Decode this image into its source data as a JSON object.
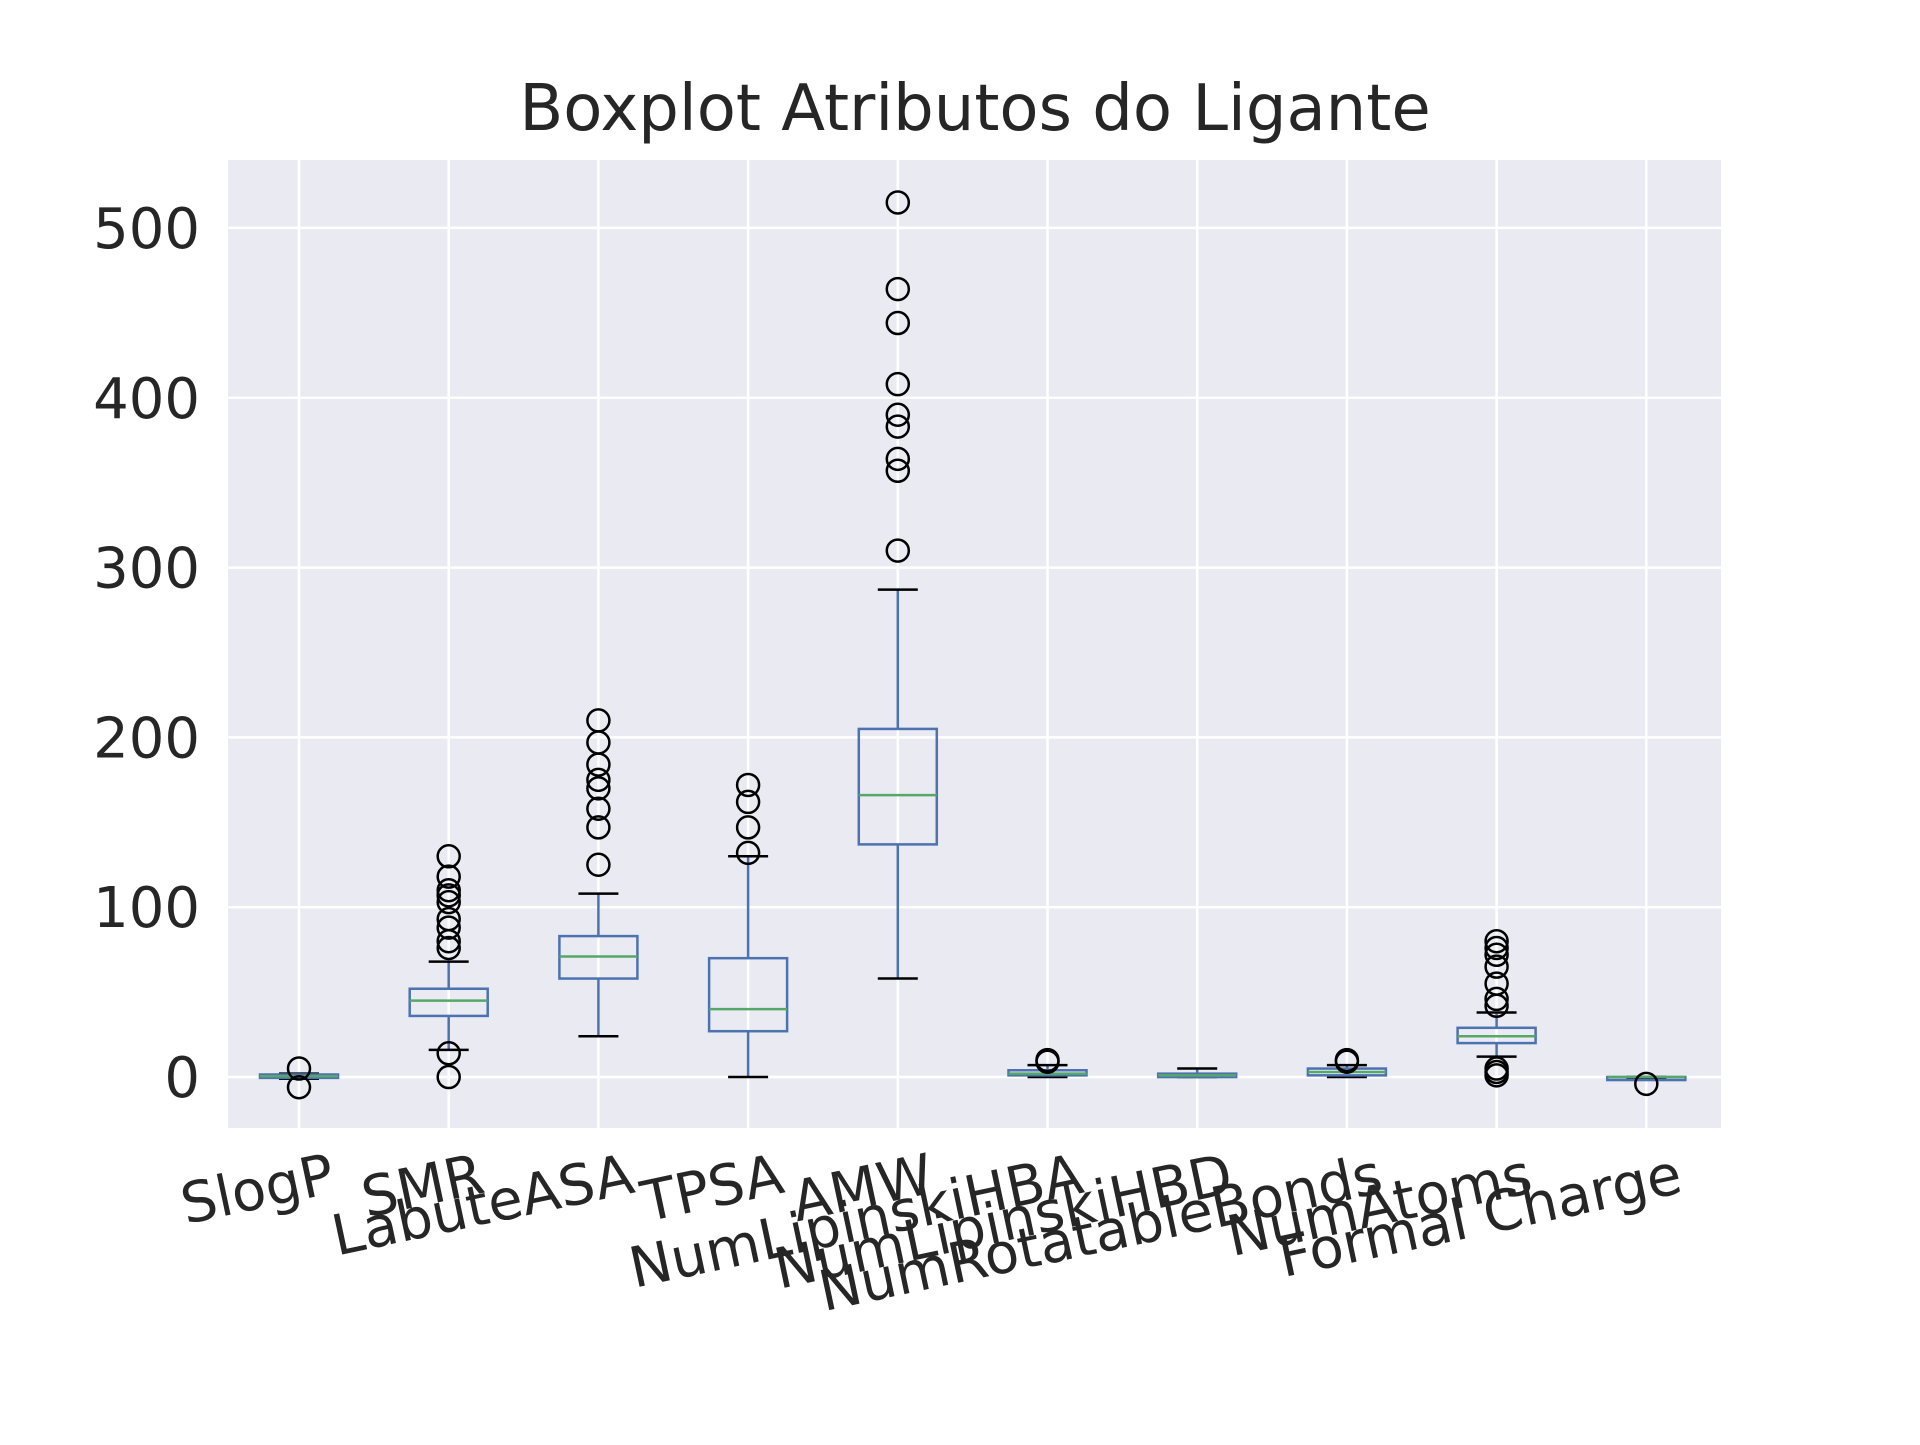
{
  "chart_data": {
    "type": "boxplot",
    "title": "Boxplot Atributos do Ligante",
    "xlabel": "",
    "ylabel": "",
    "ylim": [
      -30,
      540
    ],
    "yticks": [
      0,
      100,
      200,
      300,
      400,
      500
    ],
    "grid": true,
    "colors": {
      "background": "#eaeaf2",
      "grid": "#ffffff",
      "box": "#4c72b0",
      "median": "#55a868",
      "whisker_cap": "#000000",
      "flier": "#000000"
    },
    "categories": [
      "SlogP",
      "SMR",
      "LabuteASA",
      "TPSA",
      "AMW",
      "NumLipinskiHBA",
      "NumLipinskiHBD",
      "NumRotatableBonds",
      "NumAtoms",
      "Formal Charge"
    ],
    "boxes": [
      {
        "label": "SlogP",
        "whislo": -1,
        "q1": -0.5,
        "med": 0.5,
        "q3": 1.5,
        "whishi": 2,
        "fliers": [
          -6,
          5
        ]
      },
      {
        "label": "SMR",
        "whislo": 16,
        "q1": 36,
        "med": 45,
        "q3": 52,
        "whishi": 68,
        "fliers": [
          0,
          14,
          76,
          80,
          88,
          93,
          103,
          107,
          110,
          118,
          130
        ]
      },
      {
        "label": "LabuteASA",
        "whislo": 24,
        "q1": 58,
        "med": 71,
        "q3": 83,
        "whishi": 108,
        "fliers": [
          125,
          147,
          158,
          170,
          175,
          184,
          197,
          210
        ]
      },
      {
        "label": "TPSA",
        "whislo": 0,
        "q1": 27,
        "med": 40,
        "q3": 70,
        "whishi": 130,
        "fliers": [
          132,
          147,
          162,
          172
        ]
      },
      {
        "label": "AMW",
        "whislo": 58,
        "q1": 137,
        "med": 166,
        "q3": 205,
        "whishi": 287,
        "fliers": [
          310,
          357,
          364,
          383,
          390,
          408,
          444,
          464,
          515
        ]
      },
      {
        "label": "NumLipinskiHBA",
        "whislo": 0,
        "q1": 1,
        "med": 2,
        "q3": 4,
        "whishi": 7,
        "fliers": [
          9,
          10
        ]
      },
      {
        "label": "NumLipinskiHBD",
        "whislo": 0,
        "q1": 0,
        "med": 1,
        "q3": 2,
        "whishi": 5,
        "fliers": []
      },
      {
        "label": "NumRotatableBonds",
        "whislo": 0,
        "q1": 1,
        "med": 3,
        "q3": 5,
        "whishi": 7,
        "fliers": [
          9,
          10
        ]
      },
      {
        "label": "NumAtoms",
        "whislo": 12,
        "q1": 20,
        "med": 24,
        "q3": 29,
        "whishi": 38,
        "fliers": [
          1,
          3,
          5,
          42,
          46,
          55,
          65,
          72,
          76,
          80
        ]
      },
      {
        "label": "Formal Charge",
        "whislo": -1,
        "q1": -1,
        "med": 0,
        "q3": 0,
        "whishi": 0,
        "fliers": [
          -4
        ]
      }
    ]
  }
}
